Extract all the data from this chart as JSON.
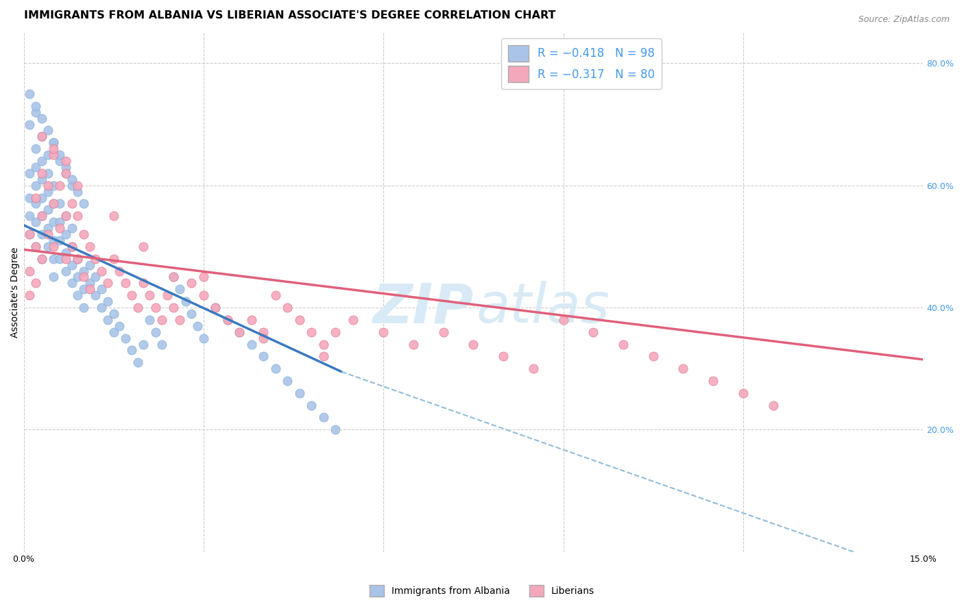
{
  "title": "IMMIGRANTS FROM ALBANIA VS LIBERIAN ASSOCIATE'S DEGREE CORRELATION CHART",
  "source": "Source: ZipAtlas.com",
  "ylabel": "Associate's Degree",
  "xlim": [
    0.0,
    0.15
  ],
  "ylim": [
    0.0,
    0.85
  ],
  "y_ticks_right": [
    0.2,
    0.4,
    0.6,
    0.8
  ],
  "y_tick_labels_right": [
    "20.0%",
    "40.0%",
    "60.0%",
    "80.0%"
  ],
  "albania_color": "#aac4e8",
  "albania_edge_color": "#7aadd4",
  "liberian_color": "#f4a8bc",
  "liberian_edge_color": "#e0708a",
  "albania_line_color": "#3a7abf",
  "liberian_line_color": "#e0607a",
  "dashed_line_color": "#90bcd8",
  "watermark_color": "#d8eaf5",
  "legend_label_albania": "Immigrants from Albania",
  "legend_label_liberian": "Liberians",
  "albania_scatter_x": [
    0.001,
    0.001,
    0.001,
    0.001,
    0.002,
    0.002,
    0.002,
    0.002,
    0.002,
    0.002,
    0.003,
    0.003,
    0.003,
    0.003,
    0.003,
    0.003,
    0.004,
    0.004,
    0.004,
    0.004,
    0.004,
    0.005,
    0.005,
    0.005,
    0.005,
    0.005,
    0.005,
    0.006,
    0.006,
    0.006,
    0.006,
    0.007,
    0.007,
    0.007,
    0.007,
    0.008,
    0.008,
    0.008,
    0.008,
    0.009,
    0.009,
    0.009,
    0.01,
    0.01,
    0.01,
    0.011,
    0.011,
    0.012,
    0.012,
    0.013,
    0.013,
    0.014,
    0.014,
    0.015,
    0.015,
    0.016,
    0.017,
    0.018,
    0.019,
    0.02,
    0.021,
    0.022,
    0.023,
    0.025,
    0.026,
    0.027,
    0.028,
    0.029,
    0.03,
    0.032,
    0.034,
    0.036,
    0.038,
    0.04,
    0.042,
    0.044,
    0.046,
    0.048,
    0.05,
    0.052,
    0.001,
    0.002,
    0.003,
    0.004,
    0.005,
    0.006,
    0.007,
    0.008,
    0.001,
    0.002,
    0.003,
    0.004,
    0.005,
    0.006,
    0.007,
    0.008,
    0.009,
    0.01
  ],
  "albania_scatter_y": [
    0.52,
    0.55,
    0.58,
    0.62,
    0.5,
    0.54,
    0.57,
    0.6,
    0.63,
    0.66,
    0.48,
    0.52,
    0.55,
    0.58,
    0.61,
    0.64,
    0.5,
    0.53,
    0.56,
    0.59,
    0.62,
    0.48,
    0.51,
    0.54,
    0.57,
    0.6,
    0.45,
    0.48,
    0.51,
    0.54,
    0.57,
    0.46,
    0.49,
    0.52,
    0.55,
    0.44,
    0.47,
    0.5,
    0.53,
    0.42,
    0.45,
    0.48,
    0.4,
    0.43,
    0.46,
    0.44,
    0.47,
    0.42,
    0.45,
    0.4,
    0.43,
    0.38,
    0.41,
    0.36,
    0.39,
    0.37,
    0.35,
    0.33,
    0.31,
    0.34,
    0.38,
    0.36,
    0.34,
    0.45,
    0.43,
    0.41,
    0.39,
    0.37,
    0.35,
    0.4,
    0.38,
    0.36,
    0.34,
    0.32,
    0.3,
    0.28,
    0.26,
    0.24,
    0.22,
    0.2,
    0.7,
    0.72,
    0.68,
    0.65,
    0.67,
    0.64,
    0.62,
    0.6,
    0.75,
    0.73,
    0.71,
    0.69,
    0.67,
    0.65,
    0.63,
    0.61,
    0.59,
    0.57
  ],
  "liberian_scatter_x": [
    0.001,
    0.001,
    0.001,
    0.002,
    0.002,
    0.002,
    0.003,
    0.003,
    0.003,
    0.004,
    0.004,
    0.005,
    0.005,
    0.005,
    0.006,
    0.006,
    0.007,
    0.007,
    0.007,
    0.008,
    0.008,
    0.009,
    0.009,
    0.01,
    0.01,
    0.011,
    0.011,
    0.012,
    0.013,
    0.014,
    0.015,
    0.016,
    0.017,
    0.018,
    0.019,
    0.02,
    0.021,
    0.022,
    0.023,
    0.024,
    0.025,
    0.026,
    0.028,
    0.03,
    0.032,
    0.034,
    0.036,
    0.038,
    0.04,
    0.042,
    0.044,
    0.046,
    0.048,
    0.05,
    0.052,
    0.055,
    0.06,
    0.065,
    0.07,
    0.075,
    0.08,
    0.085,
    0.09,
    0.095,
    0.1,
    0.105,
    0.11,
    0.115,
    0.12,
    0.125,
    0.003,
    0.005,
    0.007,
    0.009,
    0.015,
    0.02,
    0.025,
    0.03,
    0.04,
    0.05
  ],
  "liberian_scatter_y": [
    0.52,
    0.46,
    0.42,
    0.58,
    0.5,
    0.44,
    0.62,
    0.55,
    0.48,
    0.6,
    0.52,
    0.65,
    0.57,
    0.5,
    0.6,
    0.53,
    0.62,
    0.55,
    0.48,
    0.57,
    0.5,
    0.55,
    0.48,
    0.52,
    0.45,
    0.5,
    0.43,
    0.48,
    0.46,
    0.44,
    0.48,
    0.46,
    0.44,
    0.42,
    0.4,
    0.44,
    0.42,
    0.4,
    0.38,
    0.42,
    0.4,
    0.38,
    0.44,
    0.42,
    0.4,
    0.38,
    0.36,
    0.38,
    0.36,
    0.42,
    0.4,
    0.38,
    0.36,
    0.34,
    0.36,
    0.38,
    0.36,
    0.34,
    0.36,
    0.34,
    0.32,
    0.3,
    0.38,
    0.36,
    0.34,
    0.32,
    0.3,
    0.28,
    0.26,
    0.24,
    0.68,
    0.66,
    0.64,
    0.6,
    0.55,
    0.5,
    0.45,
    0.45,
    0.35,
    0.32
  ],
  "albania_line_x": [
    0.0,
    0.053
  ],
  "albania_line_y": [
    0.535,
    0.295
  ],
  "liberian_line_x": [
    0.0,
    0.15
  ],
  "liberian_line_y": [
    0.495,
    0.315
  ],
  "dashed_line_x": [
    0.053,
    0.15
  ],
  "dashed_line_y": [
    0.295,
    -0.04
  ],
  "background_color": "#ffffff",
  "grid_color": "#cccccc",
  "title_fontsize": 11.5,
  "axis_fontsize": 10,
  "tick_fontsize": 9,
  "right_tick_color": "#4499ee"
}
